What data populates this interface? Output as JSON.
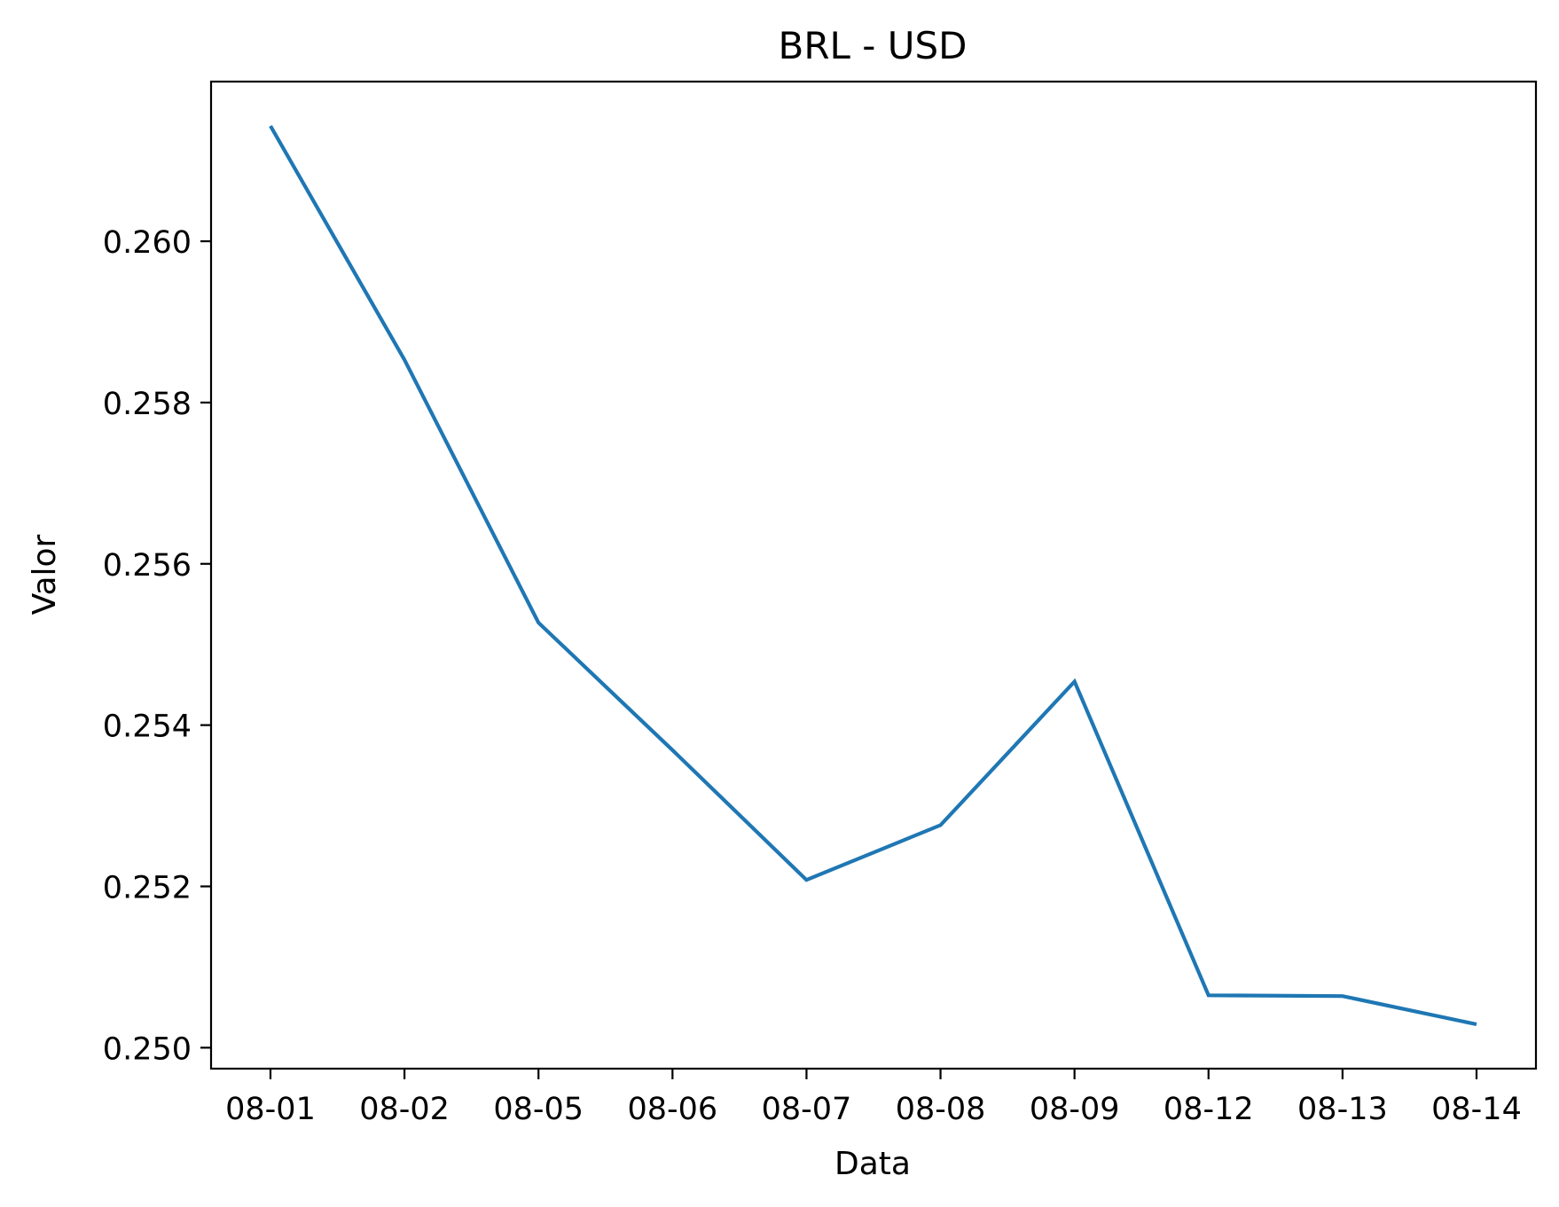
{
  "chart_data": {
    "type": "line",
    "title": "BRL - USD",
    "xlabel": "Data",
    "ylabel": "Valor",
    "categories": [
      "08-01",
      "08-02",
      "08-05",
      "08-06",
      "08-07",
      "08-08",
      "08-09",
      "08-12",
      "08-13",
      "08-14"
    ],
    "series": [
      {
        "values": [
          0.26143,
          0.25853,
          0.25527,
          0.25369,
          0.25208,
          0.25276,
          0.25454,
          0.25065,
          0.25064,
          0.25029
        ],
        "color": "#1f77b4"
      }
    ],
    "y_ticks": [
      "0.250",
      "0.252",
      "0.254",
      "0.256",
      "0.258",
      "0.260"
    ],
    "ylim": [
      0.24974,
      0.26198
    ],
    "grid": false,
    "legend": "none"
  }
}
